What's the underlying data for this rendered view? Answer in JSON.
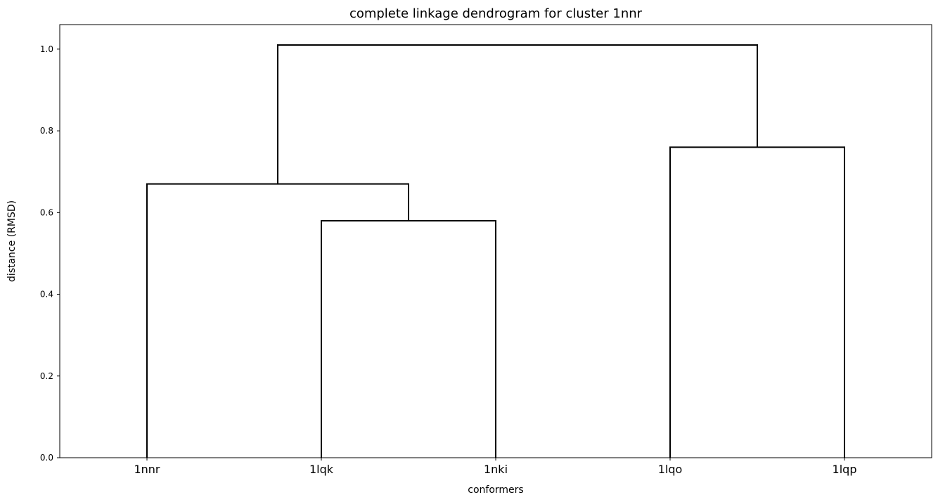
{
  "chart_data": {
    "type": "dendrogram",
    "title": "complete linkage dendrogram for cluster 1nnr",
    "xlabel": "conformers",
    "ylabel": "distance (RMSD)",
    "leaves": [
      "1nnr",
      "1lqk",
      "1nki",
      "1lqo",
      "1lqp"
    ],
    "ylim": [
      0,
      1.06
    ],
    "yticks": [
      0.0,
      0.2,
      0.4,
      0.6,
      0.8,
      1.0
    ],
    "ytick_labels": [
      "0.0",
      "0.2",
      "0.4",
      "0.6",
      "0.8",
      "1.0"
    ],
    "merges": [
      {
        "id": "m1",
        "left": "1lqk",
        "right": "1nki",
        "height": 0.58
      },
      {
        "id": "m2",
        "left": "1nnr",
        "right": "m1",
        "height": 0.67
      },
      {
        "id": "m3",
        "left": "1lqo",
        "right": "1lqp",
        "height": 0.76
      },
      {
        "id": "m4",
        "left": "m2",
        "right": "m3",
        "height": 1.01
      }
    ],
    "line_color": "#000000"
  }
}
